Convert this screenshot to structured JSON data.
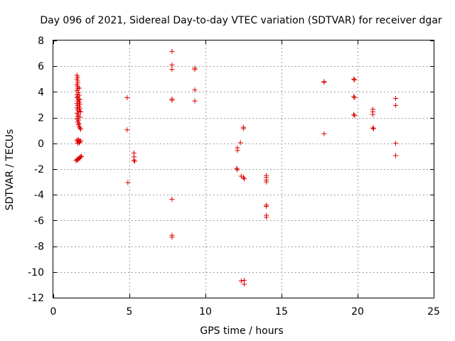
{
  "chart_data": {
    "type": "scatter",
    "title": "Day 096 of 2021, Sidereal Day-to-day VTEC variation (SDTVAR) for receiver dgar",
    "xlabel": "GPS time / hours",
    "ylabel": "SDTVAR / TECUs",
    "xlim": [
      0,
      25
    ],
    "ylim": [
      -12,
      8
    ],
    "xticks": [
      0,
      5,
      10,
      15,
      20,
      25
    ],
    "yticks": [
      -12,
      -10,
      -8,
      -6,
      -4,
      -2,
      0,
      2,
      4,
      6,
      8
    ],
    "grid": true,
    "marker": "+",
    "color": "#e00000",
    "series": [
      {
        "name": "SDTVAR",
        "points": [
          [
            1.55,
            5.3
          ],
          [
            1.6,
            5.15
          ],
          [
            1.55,
            5.0
          ],
          [
            1.6,
            4.85
          ],
          [
            1.6,
            4.7
          ],
          [
            1.55,
            4.55
          ],
          [
            1.6,
            4.4
          ],
          [
            1.6,
            4.25
          ],
          [
            1.7,
            4.3
          ],
          [
            1.55,
            4.1
          ],
          [
            1.65,
            3.95
          ],
          [
            1.55,
            3.8
          ],
          [
            1.7,
            3.75
          ],
          [
            1.6,
            3.65
          ],
          [
            1.55,
            3.55
          ],
          [
            1.65,
            3.45
          ],
          [
            1.75,
            3.4
          ],
          [
            1.6,
            3.3
          ],
          [
            1.7,
            3.2
          ],
          [
            1.55,
            3.1
          ],
          [
            1.75,
            3.05
          ],
          [
            1.6,
            2.95
          ],
          [
            1.7,
            2.85
          ],
          [
            1.55,
            2.75
          ],
          [
            1.75,
            2.7
          ],
          [
            1.6,
            2.6
          ],
          [
            1.7,
            2.5
          ],
          [
            1.8,
            2.45
          ],
          [
            1.55,
            2.35
          ],
          [
            1.65,
            2.25
          ],
          [
            1.6,
            2.1
          ],
          [
            1.75,
            2.05
          ],
          [
            1.55,
            1.9
          ],
          [
            1.65,
            1.8
          ],
          [
            1.6,
            1.65
          ],
          [
            1.7,
            1.55
          ],
          [
            1.65,
            1.45
          ],
          [
            1.7,
            1.3
          ],
          [
            1.75,
            1.2
          ],
          [
            1.8,
            1.1
          ],
          [
            1.55,
            0.25
          ],
          [
            1.6,
            0.15
          ],
          [
            1.65,
            0.3
          ],
          [
            1.7,
            0.2
          ],
          [
            1.75,
            0.1
          ],
          [
            1.8,
            0.2
          ],
          [
            1.6,
            0.0
          ],
          [
            1.7,
            0.05
          ],
          [
            1.5,
            -1.35
          ],
          [
            1.55,
            -1.25
          ],
          [
            1.6,
            -1.3
          ],
          [
            1.65,
            -1.2
          ],
          [
            1.7,
            -1.1
          ],
          [
            1.75,
            -1.15
          ],
          [
            1.8,
            -1.05
          ],
          [
            1.85,
            -1.0
          ],
          [
            4.85,
            3.55
          ],
          [
            4.85,
            1.05
          ],
          [
            4.9,
            -3.05
          ],
          [
            5.3,
            -0.75
          ],
          [
            5.3,
            -1.05
          ],
          [
            5.3,
            -1.3
          ],
          [
            5.35,
            -1.4
          ],
          [
            7.8,
            7.15
          ],
          [
            7.8,
            6.1
          ],
          [
            7.8,
            5.75
          ],
          [
            7.8,
            3.45
          ],
          [
            7.8,
            3.35
          ],
          [
            7.8,
            -4.35
          ],
          [
            7.8,
            -7.15
          ],
          [
            7.8,
            -7.3
          ],
          [
            9.3,
            5.85
          ],
          [
            9.3,
            5.75
          ],
          [
            9.3,
            4.15
          ],
          [
            9.3,
            3.3
          ],
          [
            12.1,
            -0.35
          ],
          [
            12.1,
            -0.55
          ],
          [
            12.3,
            0.05
          ],
          [
            12.5,
            1.25
          ],
          [
            12.5,
            1.15
          ],
          [
            12.05,
            -1.95
          ],
          [
            12.1,
            -2.05
          ],
          [
            12.35,
            -2.55
          ],
          [
            12.5,
            -2.65
          ],
          [
            12.55,
            -2.75
          ],
          [
            12.35,
            -10.7
          ],
          [
            12.55,
            -10.65
          ],
          [
            12.55,
            -10.95
          ],
          [
            14.0,
            -2.5
          ],
          [
            14.0,
            -2.65
          ],
          [
            14.0,
            -2.85
          ],
          [
            14.0,
            -3.0
          ],
          [
            14.0,
            -4.8
          ],
          [
            14.0,
            -4.9
          ],
          [
            14.0,
            -5.6
          ],
          [
            14.0,
            -5.75
          ],
          [
            17.8,
            4.8
          ],
          [
            17.8,
            4.75
          ],
          [
            17.8,
            0.75
          ],
          [
            19.75,
            5.0
          ],
          [
            19.8,
            4.95
          ],
          [
            19.75,
            3.65
          ],
          [
            19.8,
            3.55
          ],
          [
            19.75,
            2.25
          ],
          [
            19.8,
            2.15
          ],
          [
            21.0,
            2.65
          ],
          [
            21.0,
            2.45
          ],
          [
            21.0,
            2.25
          ],
          [
            21.0,
            1.2
          ],
          [
            21.05,
            1.15
          ],
          [
            22.5,
            3.5
          ],
          [
            22.5,
            2.95
          ],
          [
            22.5,
            0.0
          ],
          [
            22.5,
            -0.95
          ]
        ]
      }
    ]
  }
}
